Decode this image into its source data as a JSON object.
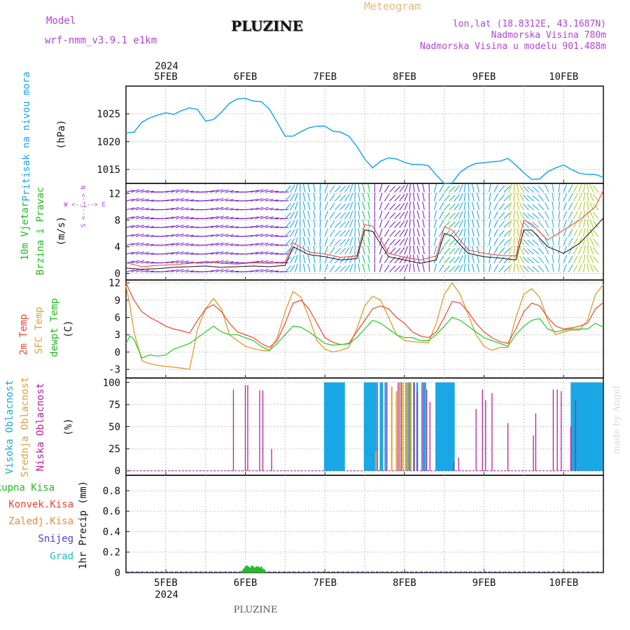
{
  "header": {
    "model_label": "Model",
    "model_value": "wrf-nmm_v3.9.1  e1km",
    "title": "PLUZINE",
    "meteogram_label": "Meteogram",
    "coords": "lon,lat (18.8312E, 43.1687N)",
    "elevation": "Nadmorska Visina 780m",
    "model_elevation": "Nadmorska Visina u modelu 901.488m",
    "footer_title": "PLUZINE",
    "watermark": "made by Angel"
  },
  "colors": {
    "pressure": "#1aa7e6",
    "wind_speed": "#111111",
    "gust": "#ff3b2f",
    "t2m": "#ee4433",
    "sfc": "#dda23a",
    "dewpt": "#22cc22",
    "cloud_high": "#1aa7e6",
    "cloud_mid": "#dda23a",
    "cloud_low": "#b8209a",
    "precip_total": "#22bb22",
    "purple_text": "#b044d8",
    "green_text": "#22bb22",
    "red_text": "#ee4433",
    "orange_text": "#ee8a30",
    "blue_text": "#4444dd",
    "cyan_text": "#22bbbb"
  },
  "time_axis": {
    "year": "2024",
    "ticks": [
      "5FEB",
      "6FEB",
      "7FEB",
      "8FEB",
      "9FEB",
      "10FEB"
    ],
    "range_days": [
      4.5,
      10.5
    ]
  },
  "panels": {
    "pressure": {
      "label_line1": "Pritisak na nivou mora",
      "unit": "(hPa)",
      "yticks": [
        "1015",
        "1020",
        "1025"
      ]
    },
    "wind": {
      "label_line1": "10m Vjetar",
      "label_line2": "Brzina i Pravac",
      "unit": "(m/s)",
      "compass": "W <--|--> E",
      "compass_ns": "S <--|--> N",
      "yticks": [
        "0",
        "4",
        "8",
        "12"
      ]
    },
    "temp": {
      "label_t2m": "2m Temp",
      "label_sfc": "SFC Temp",
      "label_dew": "dewpt Temp",
      "unit": "(C)",
      "yticks": [
        "-3",
        "0",
        "3",
        "6",
        "9",
        "12"
      ]
    },
    "cloud": {
      "label_high": "Visoka Oblacnost",
      "label_mid": "Srednja Oblacnost",
      "label_low": "Niska Oblacnost",
      "unit": "(%)",
      "yticks": [
        "0",
        "25",
        "50",
        "75",
        "100"
      ]
    },
    "precip": {
      "legend_total": "Ukupna Kisa",
      "legend_conv": "Konvek.Kisa",
      "legend_frz": "Zaledj.Kisa",
      "legend_snow": "Snijeg",
      "legend_grad": "Grad",
      "unit": "1hr Precip (mm)",
      "yticks": [
        "0",
        "0.2",
        "0.4",
        "0.6",
        "0.8"
      ]
    }
  },
  "chart_data": [
    {
      "type": "line",
      "panel": "pressure",
      "ylim": [
        1012.5,
        1030
      ],
      "series": [
        {
          "x": [
            4.5,
            4.6,
            4.7,
            4.8,
            4.9,
            5.0,
            5.1,
            5.2,
            5.3,
            5.4,
            5.5,
            5.6,
            5.7,
            5.8,
            5.9,
            6.0,
            6.1,
            6.2,
            6.3,
            6.4,
            6.5,
            6.6,
            6.7,
            6.8,
            6.9,
            7.0,
            7.1,
            7.2,
            7.3,
            7.4,
            7.5,
            7.6,
            7.7,
            7.8,
            7.9,
            8.0,
            8.1,
            8.2,
            8.3,
            8.4,
            8.5,
            8.6,
            8.7,
            8.8,
            8.9,
            9.0,
            9.1,
            9.2,
            9.3,
            9.4,
            9.5,
            9.6,
            9.7,
            9.8,
            9.9,
            10.0,
            10.1,
            10.2,
            10.3,
            10.4,
            10.5
          ],
          "values": [
            1021.6,
            1021.7,
            1023.5,
            1024.3,
            1024.8,
            1025.2,
            1024.9,
            1025.6,
            1026.1,
            1025.8,
            1023.7,
            1024.0,
            1025.3,
            1026.9,
            1027.7,
            1027.8,
            1027.3,
            1027.2,
            1025.9,
            1023.5,
            1021.0,
            1021.0,
            1021.8,
            1022.5,
            1022.8,
            1022.8,
            1021.9,
            1021.7,
            1021.0,
            1019.2,
            1016.9,
            1015.3,
            1016.5,
            1017.1,
            1016.9,
            1016.3,
            1015.9,
            1015.9,
            1015.7,
            1014.0,
            1012.5,
            1012.6,
            1014.5,
            1015.5,
            1016.1,
            1016.2,
            1016.4,
            1016.5,
            1017.0,
            1015.8,
            1014.4,
            1013.2,
            1013.3,
            1014.6,
            1015.3,
            1015.8,
            1015.0,
            1014.3,
            1014.1,
            1014.1,
            1013.6
          ]
        }
      ]
    },
    {
      "type": "line",
      "panel": "wind",
      "ylim": [
        -1,
        13.5
      ],
      "series": [
        {
          "name": "speed",
          "x": [
            4.5,
            4.7,
            4.9,
            5.1,
            5.3,
            5.5,
            5.7,
            5.9,
            6.1,
            6.3,
            6.5,
            6.6,
            6.8,
            7.0,
            7.2,
            7.4,
            7.5,
            7.6,
            7.8,
            8.0,
            8.2,
            8.4,
            8.5,
            8.6,
            8.8,
            9.0,
            9.2,
            9.4,
            9.5,
            9.6,
            9.8,
            10.0,
            10.2,
            10.4,
            10.5
          ],
          "values": [
            0.8,
            0.6,
            0.7,
            0.9,
            1.0,
            1.1,
            0.9,
            1.0,
            1.1,
            1.0,
            1.2,
            4.0,
            2.8,
            2.5,
            2.0,
            2.2,
            6.5,
            6.3,
            2.5,
            2.0,
            1.5,
            2.0,
            6.0,
            5.6,
            3.0,
            2.5,
            2.3,
            2.0,
            6.5,
            6.5,
            4.0,
            3.0,
            4.5,
            7.0,
            8.3
          ]
        },
        {
          "name": "gust",
          "x": [
            4.5,
            4.7,
            4.9,
            5.1,
            5.3,
            5.5,
            5.7,
            5.9,
            6.1,
            6.3,
            6.5,
            6.6,
            6.8,
            7.0,
            7.2,
            7.4,
            7.5,
            7.6,
            7.8,
            8.0,
            8.2,
            8.4,
            8.5,
            8.6,
            8.8,
            9.0,
            9.2,
            9.4,
            9.5,
            9.6,
            9.8,
            10.0,
            10.2,
            10.4,
            10.5
          ],
          "values": [
            1.6,
            1.0,
            1.2,
            1.3,
            1.5,
            1.8,
            1.5,
            1.4,
            1.6,
            1.5,
            1.7,
            4.6,
            3.2,
            2.9,
            2.4,
            2.6,
            7.3,
            7.1,
            3.0,
            2.4,
            2.0,
            2.6,
            7.0,
            6.5,
            3.5,
            3.0,
            2.7,
            2.6,
            8.0,
            7.4,
            5.0,
            6.5,
            8.0,
            10.0,
            12.5
          ]
        }
      ]
    },
    {
      "type": "line",
      "panel": "temp",
      "ylim": [
        -4.5,
        12.5
      ],
      "series": [
        {
          "name": "2m Temp",
          "x": [
            4.5,
            4.55,
            4.6,
            4.7,
            4.8,
            4.9,
            5.0,
            5.1,
            5.2,
            5.3,
            5.4,
            5.5,
            5.6,
            5.7,
            5.8,
            5.9,
            6.0,
            6.1,
            6.2,
            6.3,
            6.4,
            6.5,
            6.6,
            6.7,
            6.8,
            6.9,
            7.0,
            7.1,
            7.2,
            7.3,
            7.4,
            7.5,
            7.6,
            7.7,
            7.8,
            7.9,
            8.0,
            8.1,
            8.2,
            8.3,
            8.4,
            8.5,
            8.6,
            8.7,
            8.8,
            8.9,
            9.0,
            9.1,
            9.2,
            9.3,
            9.4,
            9.5,
            9.6,
            9.7,
            9.8,
            9.9,
            10.0,
            10.1,
            10.2,
            10.3,
            10.4,
            10.5
          ],
          "values": [
            12,
            10.5,
            9,
            7,
            6,
            5.3,
            4.5,
            4.0,
            3.7,
            3.3,
            5.5,
            7.5,
            8.2,
            7.0,
            5.0,
            3.5,
            3.0,
            2.5,
            1.5,
            0.8,
            2.0,
            5.0,
            8.5,
            9.0,
            7.5,
            5.0,
            2.5,
            1.7,
            1.3,
            1.5,
            3.5,
            5.5,
            7.5,
            8.0,
            7.5,
            6.0,
            5.0,
            3.5,
            2.8,
            2.5,
            3.5,
            6.0,
            8.8,
            8.5,
            7.0,
            5.0,
            3.5,
            2.5,
            1.8,
            1.5,
            4.0,
            7.0,
            8.5,
            8.0,
            6.0,
            4.5,
            4.0,
            4.2,
            4.5,
            5.0,
            7.5,
            8.6
          ]
        },
        {
          "name": "SFC Temp",
          "x": [
            4.5,
            4.55,
            4.6,
            4.7,
            4.8,
            4.9,
            5.0,
            5.1,
            5.2,
            5.3,
            5.4,
            5.5,
            5.6,
            5.7,
            5.8,
            5.9,
            6.0,
            6.1,
            6.2,
            6.3,
            6.4,
            6.5,
            6.6,
            6.7,
            6.8,
            6.9,
            7.0,
            7.1,
            7.2,
            7.3,
            7.4,
            7.5,
            7.6,
            7.7,
            7.8,
            7.9,
            8.0,
            8.1,
            8.2,
            8.3,
            8.4,
            8.5,
            8.6,
            8.7,
            8.8,
            8.9,
            9.0,
            9.1,
            9.2,
            9.3,
            9.4,
            9.5,
            9.6,
            9.7,
            9.8,
            9.9,
            10.0,
            10.1,
            10.2,
            10.3,
            10.4,
            10.5
          ],
          "values": [
            11.5,
            8,
            3.5,
            -1.5,
            -2.0,
            -2.3,
            -2.5,
            -2.6,
            -2.8,
            -3.0,
            4.0,
            7.5,
            9.3,
            7.5,
            3.0,
            2.0,
            1.0,
            0.6,
            0.3,
            0.2,
            2.5,
            7.0,
            10.5,
            9.5,
            6.0,
            2.0,
            0.5,
            0.0,
            0.3,
            0.8,
            4.0,
            8.0,
            9.7,
            9.0,
            6.0,
            3.0,
            2.0,
            1.8,
            1.7,
            1.6,
            5.0,
            10.0,
            12.0,
            10.0,
            6.5,
            3.0,
            1.0,
            0.3,
            0.8,
            0.8,
            6.0,
            10.0,
            11.0,
            9.5,
            5.5,
            3.0,
            3.5,
            3.8,
            3.8,
            5.5,
            10.0,
            11.7
          ]
        },
        {
          "name": "dewpt Temp",
          "x": [
            4.5,
            4.55,
            4.6,
            4.7,
            4.8,
            4.9,
            5.0,
            5.1,
            5.2,
            5.3,
            5.4,
            5.5,
            5.6,
            5.7,
            5.8,
            5.9,
            6.0,
            6.1,
            6.2,
            6.3,
            6.4,
            6.5,
            6.6,
            6.7,
            6.8,
            6.9,
            7.0,
            7.1,
            7.2,
            7.3,
            7.4,
            7.5,
            7.6,
            7.7,
            7.8,
            7.9,
            8.0,
            8.1,
            8.2,
            8.3,
            8.4,
            8.5,
            8.6,
            8.7,
            8.8,
            8.9,
            9.0,
            9.1,
            9.2,
            9.3,
            9.4,
            9.5,
            9.6,
            9.7,
            9.8,
            9.9,
            10.0,
            10.1,
            10.2,
            10.3,
            10.4,
            10.5
          ],
          "values": [
            1.5,
            2.8,
            2.2,
            -1.0,
            -0.5,
            -0.7,
            -0.5,
            0.5,
            1.0,
            1.5,
            2.5,
            3.5,
            4.5,
            3.5,
            3.0,
            3.0,
            2.5,
            2.0,
            1.0,
            0.3,
            1.5,
            3.0,
            4.5,
            4.3,
            3.5,
            2.5,
            1.5,
            1.2,
            1.3,
            1.4,
            2.5,
            4.0,
            5.5,
            5.0,
            4.0,
            3.0,
            2.5,
            2.5,
            2.0,
            2.0,
            3.0,
            4.5,
            6.0,
            5.5,
            4.5,
            3.5,
            2.5,
            2.0,
            1.5,
            1.0,
            3.0,
            4.5,
            5.5,
            5.8,
            4.0,
            3.5,
            3.8,
            4.0,
            4.0,
            4.0,
            5.0,
            4.3
          ]
        }
      ]
    },
    {
      "type": "bar",
      "panel": "cloud",
      "ylim": [
        -5,
        105
      ],
      "series": [
        {
          "name": "Visoka Oblacnost",
          "x": [
            7.0,
            7.02,
            7.04,
            7.06,
            7.08,
            7.1,
            7.12,
            7.14,
            7.16,
            7.18,
            7.2,
            7.22,
            7.24,
            7.5,
            7.52,
            7.54,
            7.56,
            7.58,
            7.6,
            7.62,
            7.64,
            7.7,
            7.72,
            7.76,
            8.02,
            8.06,
            8.12,
            8.16,
            8.24,
            8.26,
            8.4,
            8.42,
            8.44,
            8.46,
            8.48,
            8.5,
            8.52,
            8.54,
            8.56,
            8.58,
            8.6,
            8.62,
            10.1,
            10.12,
            10.14,
            10.16,
            10.18,
            10.2,
            10.22,
            10.24,
            10.26,
            10.28,
            10.3,
            10.32,
            10.34,
            10.36,
            10.38,
            10.4,
            10.42,
            10.44,
            10.46,
            10.48
          ],
          "values": [
            100,
            100,
            100,
            100,
            100,
            100,
            100,
            100,
            100,
            100,
            100,
            100,
            100,
            100,
            100,
            100,
            100,
            100,
            100,
            100,
            100,
            100,
            100,
            100,
            100,
            100,
            100,
            100,
            100,
            100,
            100,
            100,
            100,
            100,
            100,
            100,
            100,
            100,
            100,
            100,
            100,
            100,
            100,
            100,
            100,
            100,
            100,
            100,
            100,
            100,
            100,
            100,
            100,
            100,
            100,
            100,
            100,
            100,
            100,
            100,
            100,
            100
          ]
        },
        {
          "name": "Srednja Oblacnost",
          "x": [
            7.64,
            7.84,
            7.9,
            7.94,
            7.98,
            8.02,
            8.04,
            8.08
          ],
          "values": [
            22,
            95,
            90,
            100,
            100,
            100,
            100,
            100
          ]
        },
        {
          "name": "Niska Oblacnost",
          "x": [
            5.85,
            6.0,
            6.03,
            6.18,
            6.22,
            6.33,
            7.66,
            7.78,
            7.92,
            7.96,
            8.12,
            8.16,
            8.22,
            8.28,
            8.32,
            8.62,
            8.68,
            8.9,
            8.98,
            9.02,
            9.1,
            9.3,
            9.62,
            9.65,
            9.87,
            9.92,
            9.97,
            10.09,
            10.15
          ],
          "values": [
            92,
            97,
            97,
            91,
            91,
            25,
            100,
            100,
            100,
            100,
            100,
            90,
            100,
            92,
            78,
            10,
            15,
            70,
            92,
            80,
            88,
            54,
            40,
            65,
            92,
            92,
            90,
            50,
            80
          ]
        }
      ]
    },
    {
      "type": "bar",
      "panel": "precip",
      "ylim": [
        0,
        0.95
      ],
      "series": [
        {
          "name": "Ukupna Kisa",
          "x": [
            5.96,
            5.98,
            6.0,
            6.02,
            6.04,
            6.06,
            6.08,
            6.1,
            6.12,
            6.14,
            6.16,
            6.18,
            6.2,
            6.22,
            6.24
          ],
          "values": [
            0.02,
            0.04,
            0.06,
            0.07,
            0.06,
            0.05,
            0.07,
            0.06,
            0.05,
            0.06,
            0.06,
            0.05,
            0.06,
            0.04,
            0.03
          ]
        }
      ]
    }
  ]
}
